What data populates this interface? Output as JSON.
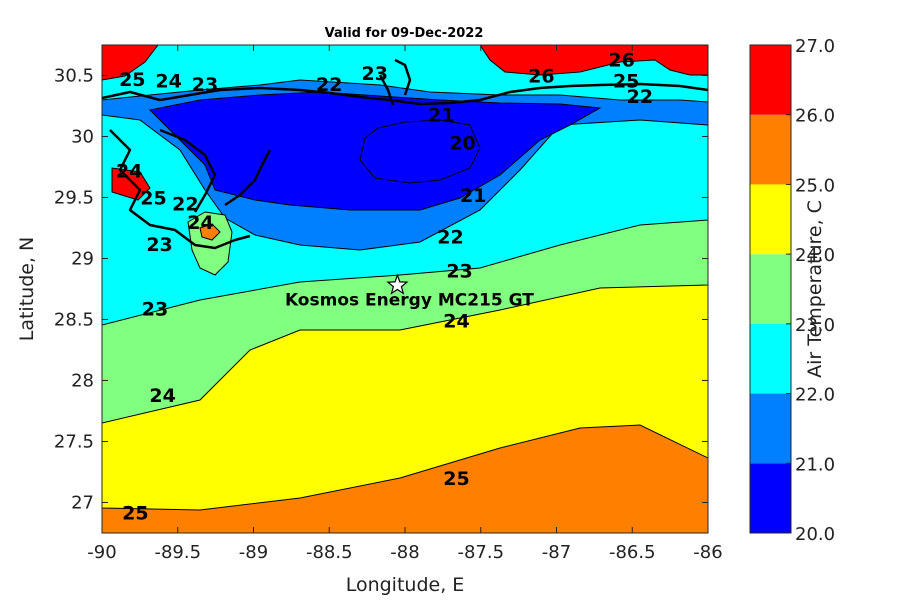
{
  "chart_data": {
    "type": "heatmap",
    "subtype": "filled-contour-map",
    "title": "Valid for 09-Dec-2022",
    "xlabel": "Longitude, E",
    "ylabel": "Latitude, N",
    "colorbar_label": "Air Temperature, C",
    "xlim": [
      -90,
      -86
    ],
    "ylim": [
      26.75,
      30.75
    ],
    "xticks": [
      "-90",
      "-89.5",
      "-89",
      "-88.5",
      "-88",
      "-87.5",
      "-87",
      "-86.5",
      "-86"
    ],
    "yticks": [
      "27",
      "27.5",
      "28",
      "28.5",
      "29",
      "29.5",
      "30",
      "30.5"
    ],
    "colorbar": {
      "range": [
        20,
        27
      ],
      "ticks": [
        "20.0",
        "21.0",
        "22.0",
        "23.0",
        "24.0",
        "25.0",
        "26.0",
        "27.0"
      ],
      "bands": [
        {
          "from": 20,
          "to": 21,
          "color": "#0000ff"
        },
        {
          "from": 21,
          "to": 22,
          "color": "#0080ff"
        },
        {
          "from": 22,
          "to": 23,
          "color": "#00ffff"
        },
        {
          "from": 23,
          "to": 24,
          "color": "#80ff80"
        },
        {
          "from": 24,
          "to": 25,
          "color": "#ffff00"
        },
        {
          "from": 25,
          "to": 26,
          "color": "#ff8000"
        },
        {
          "from": 26,
          "to": 27,
          "color": "#ff0000"
        }
      ]
    },
    "contour_levels": [
      20,
      21,
      22,
      23,
      24,
      25,
      26
    ],
    "contour_labels": [
      {
        "text": "25",
        "lon": -89.78,
        "lat": 26.92
      },
      {
        "text": "24",
        "lon": -89.6,
        "lat": 27.88
      },
      {
        "text": "23",
        "lon": -89.65,
        "lat": 28.59
      },
      {
        "text": "24",
        "lon": -87.66,
        "lat": 28.49
      },
      {
        "text": "23",
        "lon": -87.64,
        "lat": 28.9
      },
      {
        "text": "22",
        "lon": -87.7,
        "lat": 29.18
      },
      {
        "text": "21",
        "lon": -87.55,
        "lat": 29.52
      },
      {
        "text": "20",
        "lon": -87.62,
        "lat": 29.95
      },
      {
        "text": "21",
        "lon": -87.76,
        "lat": 30.18
      },
      {
        "text": "22",
        "lon": -88.5,
        "lat": 30.43
      },
      {
        "text": "23",
        "lon": -88.2,
        "lat": 30.52
      },
      {
        "text": "25",
        "lon": -87.66,
        "lat": 27.2
      },
      {
        "text": "25",
        "lon": -89.8,
        "lat": 30.47
      },
      {
        "text": "24",
        "lon": -89.56,
        "lat": 30.46
      },
      {
        "text": "23",
        "lon": -89.32,
        "lat": 30.43
      },
      {
        "text": "26",
        "lon": -87.1,
        "lat": 30.5
      },
      {
        "text": "26",
        "lon": -86.57,
        "lat": 30.63
      },
      {
        "text": "25",
        "lon": -86.54,
        "lat": 30.46
      },
      {
        "text": "22",
        "lon": -86.45,
        "lat": 30.33
      },
      {
        "text": "24",
        "lon": -89.82,
        "lat": 29.72
      },
      {
        "text": "25",
        "lon": -89.66,
        "lat": 29.5
      },
      {
        "text": "22",
        "lon": -89.45,
        "lat": 29.45
      },
      {
        "text": "24",
        "lon": -89.35,
        "lat": 29.3
      },
      {
        "text": "23",
        "lon": -89.62,
        "lat": 29.12
      }
    ],
    "station": {
      "name": "Kosmos Energy MC215 GT",
      "lon": -88.05,
      "lat": 28.78
    }
  }
}
